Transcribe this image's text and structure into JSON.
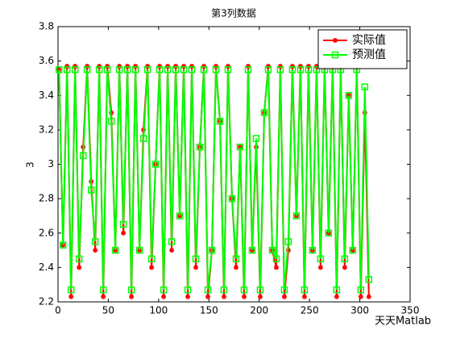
{
  "chart_data": {
    "type": "line",
    "title": "第3列数据",
    "y_label": "3",
    "watermark": "天天Matlab",
    "x": [
      1,
      5,
      9,
      13,
      17,
      21,
      25,
      29,
      33,
      37,
      41,
      45,
      49,
      53,
      57,
      61,
      65,
      69,
      73,
      77,
      81,
      85,
      89,
      93,
      97,
      101,
      105,
      109,
      113,
      117,
      121,
      125,
      129,
      133,
      137,
      141,
      145,
      149,
      153,
      157,
      161,
      165,
      169,
      173,
      177,
      181,
      185,
      189,
      193,
      197,
      201,
      205,
      209,
      213,
      217,
      221,
      225,
      229,
      233,
      237,
      241,
      245,
      249,
      253,
      257,
      261,
      265,
      269,
      273,
      277,
      281,
      285,
      289,
      293,
      297,
      301,
      305,
      309
    ],
    "series": [
      {
        "name": "实际值",
        "color": "#ff0000",
        "marker": "star",
        "values": [
          3.55,
          2.53,
          3.57,
          2.23,
          3.57,
          2.4,
          3.1,
          3.57,
          2.9,
          2.5,
          3.57,
          2.23,
          3.57,
          3.3,
          2.5,
          3.57,
          2.6,
          3.57,
          2.23,
          3.57,
          2.5,
          3.2,
          3.57,
          2.4,
          3.0,
          3.57,
          2.23,
          3.57,
          2.5,
          3.57,
          2.7,
          3.57,
          2.23,
          3.57,
          2.4,
          3.1,
          3.57,
          2.23,
          2.5,
          3.57,
          3.25,
          2.23,
          3.57,
          2.8,
          2.4,
          3.1,
          2.23,
          3.57,
          2.5,
          3.1,
          2.23,
          3.3,
          3.57,
          2.5,
          2.4,
          3.57,
          2.23,
          2.5,
          3.57,
          2.7,
          3.57,
          2.23,
          3.57,
          2.5,
          3.57,
          2.4,
          3.57,
          2.6,
          3.57,
          2.23,
          3.57,
          2.4,
          3.4,
          2.5,
          3.57,
          2.23,
          3.3,
          2.23
        ]
      },
      {
        "name": "预测值",
        "color": "#00ff00",
        "marker": "square",
        "values": [
          3.55,
          2.53,
          3.55,
          2.27,
          3.55,
          2.45,
          3.05,
          3.55,
          2.85,
          2.55,
          3.55,
          2.27,
          3.55,
          3.25,
          2.5,
          3.55,
          2.65,
          3.55,
          2.27,
          3.55,
          2.5,
          3.15,
          3.55,
          2.45,
          3.0,
          3.55,
          2.27,
          3.55,
          2.55,
          3.55,
          2.7,
          3.55,
          2.27,
          3.55,
          2.45,
          3.1,
          3.55,
          2.27,
          2.5,
          3.55,
          3.25,
          2.27,
          3.55,
          2.8,
          2.45,
          3.1,
          2.27,
          3.55,
          2.5,
          3.15,
          2.27,
          3.3,
          3.55,
          2.5,
          2.45,
          3.55,
          2.27,
          2.55,
          3.55,
          2.7,
          3.55,
          2.27,
          3.55,
          2.5,
          3.55,
          2.45,
          3.55,
          2.6,
          3.55,
          2.27,
          3.55,
          2.45,
          3.4,
          2.5,
          3.55,
          2.27,
          3.45,
          2.33
        ]
      }
    ],
    "xlim": [
      0,
      350
    ],
    "xticks": [
      0,
      50,
      100,
      150,
      200,
      250,
      300,
      350
    ],
    "ylim": [
      2.2,
      3.8
    ],
    "yticks": [
      2.2,
      2.4,
      2.6,
      2.8,
      3,
      3.2,
      3.4,
      3.6,
      3.8
    ],
    "legend": "top-right"
  }
}
